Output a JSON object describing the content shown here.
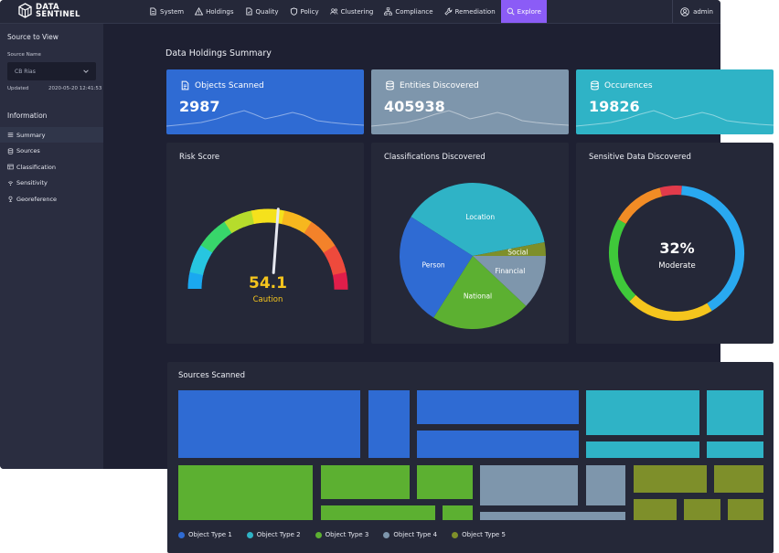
{
  "brand": {
    "line1": "DATA",
    "line2": "SENTINEL"
  },
  "nav": [
    {
      "label": "System",
      "icon": "document-icon"
    },
    {
      "label": "Holdings",
      "icon": "warning-icon"
    },
    {
      "label": "Quality",
      "icon": "quality-icon"
    },
    {
      "label": "Policy",
      "icon": "shield-icon"
    },
    {
      "label": "Clustering",
      "icon": "users-icon"
    },
    {
      "label": "Compliance",
      "icon": "hierarchy-icon"
    },
    {
      "label": "Remediation",
      "icon": "wrench-icon"
    },
    {
      "label": "Explore",
      "icon": "search-icon",
      "active": true
    }
  ],
  "user": {
    "name": "admin"
  },
  "sidebar": {
    "title": "Source to View",
    "source_label": "Source Name",
    "source_value": "CB Rias",
    "updated_label": "Updated",
    "updated_value": "2020-05-20 12:41:53",
    "info_title": "Information",
    "items": [
      {
        "label": "Summary",
        "icon": "list-icon",
        "active": true
      },
      {
        "label": "Sources",
        "icon": "database-icon"
      },
      {
        "label": "Classification",
        "icon": "table-icon"
      },
      {
        "label": "Sensitivity",
        "icon": "signal-icon"
      },
      {
        "label": "Georeference",
        "icon": "pin-icon"
      }
    ]
  },
  "main": {
    "section_title": "Data Holdings Summary",
    "kpis": [
      {
        "label": "Objects Scanned",
        "value": "2987",
        "color": "#2f6bd3"
      },
      {
        "label": "Entities Discovered",
        "value": "405938",
        "color": "#7e96ac"
      },
      {
        "label": "Occurences",
        "value": "19826",
        "color": "#2fb3c6"
      }
    ],
    "risk": {
      "title": "Risk Score",
      "value": "54.1",
      "level": "Caution",
      "score": 54.1
    },
    "classifications": {
      "title": "Classifications Discovered",
      "slices": [
        {
          "label": "Location",
          "value": 38,
          "color": "#2fb3c6"
        },
        {
          "label": "Social",
          "value": 3,
          "color": "#7e8f2a"
        },
        {
          "label": "Financial",
          "value": 12,
          "color": "#7e96ac"
        },
        {
          "label": "National",
          "value": 22,
          "color": "#5cb031"
        },
        {
          "label": "Person",
          "value": 25,
          "color": "#2f6bd3"
        }
      ]
    },
    "sensitive": {
      "title": "Sensitive Data Discovered",
      "percent": "32%",
      "level": "Moderate",
      "segments": [
        {
          "color": "#e23b4b",
          "value": 5
        },
        {
          "color": "#29a9f0",
          "value": 38
        },
        {
          "color": "#f5c51d",
          "value": 20
        },
        {
          "color": "#3fc93a",
          "value": 20
        },
        {
          "color": "#f28c25",
          "value": 12
        }
      ]
    }
  },
  "sources": {
    "title": "Sources Scanned",
    "legend": [
      {
        "label": "Object Type 1",
        "color": "#2f6bd3"
      },
      {
        "label": "Object Type 2",
        "color": "#2fb3c6"
      },
      {
        "label": "Object Type 3",
        "color": "#5cb031"
      },
      {
        "label": "Object Type 4",
        "color": "#7e96ac"
      },
      {
        "label": "Object Type 5",
        "color": "#7e8f2a"
      }
    ]
  }
}
